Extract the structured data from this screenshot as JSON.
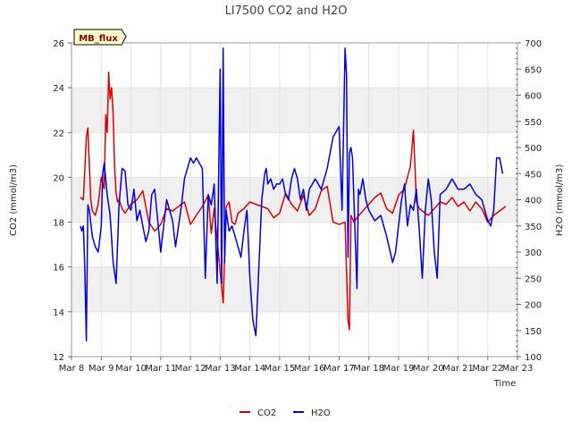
{
  "chart_data": {
    "type": "line",
    "title": "LI7500 CO2 and H2O",
    "xlabel": "Time",
    "ylabel_left": "CO2 (mmol/m3)",
    "ylabel_right": "H2O (mmol/m3)",
    "ylim_left": [
      12,
      26
    ],
    "ylim_right": [
      100,
      700
    ],
    "xlim": [
      8,
      23
    ],
    "x_ticks": [
      8,
      9,
      10,
      11,
      12,
      13,
      14,
      15,
      16,
      17,
      18,
      19,
      20,
      21,
      22,
      23
    ],
    "x_tick_labels": [
      "Mar 8",
      "Mar 9",
      "Mar 10",
      "Mar 11",
      "Mar 12",
      "Mar 13",
      "Mar 14",
      "Mar 15",
      "Mar 16",
      "Mar 17",
      "Mar 18",
      "Mar 19",
      "Mar 20",
      "Mar 21",
      "Mar 22",
      "Mar 23"
    ],
    "y_ticks_left": [
      12,
      14,
      16,
      18,
      20,
      22,
      24,
      26
    ],
    "y_ticks_right": [
      100,
      150,
      200,
      250,
      300,
      350,
      400,
      450,
      500,
      550,
      600,
      650,
      700
    ],
    "badge": "MB_flux",
    "grid": true,
    "legend_position": "bottom-center",
    "colors": {
      "CO2": "#dd0000",
      "H2O": "#0000dd",
      "band": "#f0f0f0",
      "badge_bg": "#ffffcc",
      "badge_text": "#8b0000"
    },
    "series": [
      {
        "name": "CO2",
        "axis": "left",
        "x": [
          8.3,
          8.4,
          8.5,
          8.55,
          8.6,
          8.65,
          8.7,
          8.8,
          8.9,
          9.0,
          9.1,
          9.15,
          9.2,
          9.25,
          9.3,
          9.35,
          9.4,
          9.45,
          9.5,
          9.55,
          9.6,
          9.7,
          9.8,
          9.9,
          10.0,
          10.2,
          10.4,
          10.6,
          10.8,
          11.0,
          11.2,
          11.4,
          11.6,
          11.8,
          12.0,
          12.2,
          12.4,
          12.6,
          12.7,
          12.8,
          12.9,
          13.0,
          13.1,
          13.15,
          13.2,
          13.3,
          13.4,
          13.5,
          13.6,
          13.8,
          14.0,
          14.2,
          14.4,
          14.6,
          14.8,
          15.0,
          15.2,
          15.4,
          15.6,
          15.8,
          16.0,
          16.2,
          16.4,
          16.6,
          16.8,
          17.0,
          17.2,
          17.3,
          17.35,
          17.4,
          17.5,
          17.6,
          17.8,
          18.0,
          18.2,
          18.4,
          18.6,
          18.8,
          19.0,
          19.2,
          19.4,
          19.5,
          19.6,
          19.7,
          19.8,
          20.0,
          20.2,
          20.4,
          20.6,
          20.8,
          21.0,
          21.2,
          21.4,
          21.6,
          21.8,
          22.0,
          22.2,
          22.4,
          22.6
        ],
        "values": [
          19.1,
          19.0,
          21.8,
          22.2,
          20.5,
          19.0,
          18.5,
          18.3,
          18.8,
          20.0,
          19.5,
          22.8,
          22.0,
          24.7,
          23.5,
          24.0,
          22.8,
          20.5,
          19.3,
          18.9,
          19.0,
          18.6,
          18.4,
          18.6,
          18.8,
          19.0,
          19.4,
          18.0,
          17.6,
          17.9,
          18.6,
          18.5,
          18.7,
          18.9,
          17.9,
          18.3,
          18.7,
          19.2,
          17.5,
          18.6,
          17.2,
          15.8,
          14.4,
          16.5,
          18.7,
          18.9,
          18.0,
          17.9,
          18.4,
          18.6,
          18.9,
          18.8,
          18.7,
          18.6,
          18.2,
          18.4,
          19.3,
          18.8,
          18.5,
          19.2,
          18.3,
          18.6,
          19.4,
          19.6,
          18.0,
          17.9,
          18.0,
          13.6,
          13.2,
          18.3,
          18.0,
          18.2,
          18.5,
          18.8,
          19.1,
          19.3,
          18.6,
          18.4,
          19.2,
          19.5,
          20.5,
          22.1,
          18.9,
          18.6,
          18.5,
          18.3,
          18.6,
          18.9,
          18.8,
          19.1,
          18.7,
          18.9,
          18.5,
          18.9,
          18.6,
          18.0,
          18.3,
          18.5,
          18.7
        ]
      },
      {
        "name": "H2O",
        "axis": "right",
        "x": [
          8.3,
          8.35,
          8.4,
          8.45,
          8.5,
          8.55,
          8.6,
          8.7,
          8.8,
          8.9,
          9.0,
          9.05,
          9.1,
          9.2,
          9.3,
          9.4,
          9.5,
          9.6,
          9.7,
          9.8,
          9.9,
          10.0,
          10.1,
          10.2,
          10.3,
          10.4,
          10.5,
          10.6,
          10.7,
          10.8,
          10.9,
          11.0,
          11.1,
          11.2,
          11.3,
          11.4,
          11.5,
          11.6,
          11.7,
          11.8,
          11.9,
          12.0,
          12.1,
          12.2,
          12.3,
          12.4,
          12.5,
          12.6,
          12.7,
          12.8,
          12.85,
          12.9,
          13.0,
          13.05,
          13.1,
          13.15,
          13.2,
          13.3,
          13.4,
          13.5,
          13.6,
          13.7,
          13.8,
          13.9,
          14.0,
          14.1,
          14.2,
          14.3,
          14.4,
          14.5,
          14.55,
          14.6,
          14.7,
          14.8,
          14.9,
          15.0,
          15.1,
          15.2,
          15.3,
          15.4,
          15.5,
          15.6,
          15.7,
          15.8,
          15.9,
          16.0,
          16.2,
          16.4,
          16.6,
          16.8,
          16.9,
          17.0,
          17.1,
          17.2,
          17.25,
          17.3,
          17.35,
          17.4,
          17.45,
          17.5,
          17.6,
          17.65,
          17.7,
          17.8,
          17.9,
          18.0,
          18.2,
          18.4,
          18.6,
          18.8,
          18.9,
          19.0,
          19.1,
          19.2,
          19.3,
          19.4,
          19.5,
          19.6,
          19.7,
          19.8,
          19.9,
          20.0,
          20.1,
          20.2,
          20.3,
          20.4,
          20.6,
          20.8,
          21.0,
          21.2,
          21.4,
          21.6,
          21.8,
          22.0,
          22.1,
          22.2,
          22.3,
          22.4,
          22.5
        ],
        "values": [
          350,
          340,
          350,
          260,
          130,
          390,
          380,
          330,
          310,
          300,
          350,
          450,
          470,
          410,
          370,
          280,
          240,
          390,
          460,
          455,
          390,
          380,
          420,
          360,
          380,
          350,
          320,
          340,
          410,
          420,
          360,
          300,
          350,
          400,
          380,
          360,
          310,
          350,
          390,
          440,
          460,
          480,
          470,
          480,
          470,
          460,
          250,
          410,
          390,
          430,
          330,
          240,
          650,
          240,
          690,
          280,
          380,
          340,
          350,
          330,
          310,
          290,
          340,
          380,
          250,
          170,
          140,
          270,
          400,
          450,
          460,
          430,
          440,
          420,
          430,
          430,
          440,
          410,
          400,
          440,
          460,
          440,
          400,
          420,
          380,
          420,
          440,
          420,
          460,
          520,
          530,
          540,
          380,
          690,
          640,
          290,
          490,
          500,
          480,
          400,
          230,
          420,
          410,
          440,
          400,
          380,
          360,
          370,
          330,
          280,
          300,
          350,
          400,
          430,
          350,
          390,
          380,
          420,
          340,
          250,
          380,
          440,
          400,
          300,
          250,
          410,
          420,
          440,
          420,
          420,
          430,
          410,
          400,
          360,
          350,
          380,
          480,
          480,
          450
        ]
      }
    ]
  }
}
